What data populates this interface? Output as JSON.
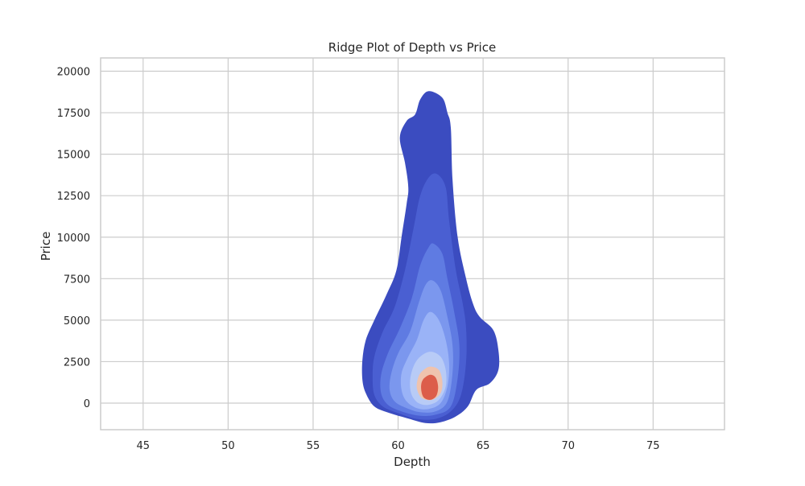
{
  "chart_data": {
    "type": "density_contour",
    "title": "Ridge Plot of Depth vs Price",
    "xlabel": "Depth",
    "ylabel": "Price",
    "xlim": [
      42.5,
      79.2
    ],
    "ylim": [
      -1600,
      20800
    ],
    "x_ticks": [
      45,
      50,
      55,
      60,
      65,
      70,
      75
    ],
    "y_ticks": [
      0,
      2500,
      5000,
      7500,
      10000,
      12500,
      15000,
      17500,
      20000
    ],
    "grid": true,
    "palette": [
      "#3b4cc0",
      "#4a5fd2",
      "#5f7be2",
      "#7b97ee",
      "#9ab3f7",
      "#b8cbf6",
      "#d3d8e6",
      "#efc3ae",
      "#dc5d4a"
    ],
    "levels": [
      {
        "level": 1,
        "color": "#3b4cc0",
        "points": [
          [
            61.8,
            18.8
          ],
          [
            62.6,
            18.4
          ],
          [
            62.9,
            17.5
          ],
          [
            63.1,
            16.6
          ],
          [
            63.2,
            13.5
          ],
          [
            63.5,
            10.0
          ],
          [
            64.0,
            7.5
          ],
          [
            64.4,
            6.0
          ],
          [
            64.8,
            5.2
          ],
          [
            65.6,
            4.4
          ],
          [
            65.9,
            3.2
          ],
          [
            65.9,
            2.0
          ],
          [
            65.4,
            1.2
          ],
          [
            64.6,
            0.8
          ],
          [
            64.1,
            -0.2
          ],
          [
            63.4,
            -0.8
          ],
          [
            62.5,
            -1.15
          ],
          [
            61.6,
            -1.2
          ],
          [
            60.5,
            -0.9
          ],
          [
            59.5,
            -0.6
          ],
          [
            58.6,
            -0.2
          ],
          [
            58.1,
            0.6
          ],
          [
            57.9,
            1.4
          ],
          [
            57.9,
            2.6
          ],
          [
            58.1,
            3.8
          ],
          [
            58.6,
            5.0
          ],
          [
            59.3,
            6.5
          ],
          [
            59.9,
            8.0
          ],
          [
            60.2,
            10.0
          ],
          [
            60.5,
            12.0
          ],
          [
            60.6,
            13.0
          ],
          [
            60.4,
            14.5
          ],
          [
            60.1,
            16.0
          ],
          [
            60.5,
            17.0
          ],
          [
            61.0,
            17.4
          ],
          [
            61.3,
            18.3
          ]
        ]
      },
      {
        "level": 2,
        "color": "#4a5fd2",
        "points": [
          [
            62.3,
            13.8
          ],
          [
            62.8,
            13.0
          ],
          [
            63.0,
            11.0
          ],
          [
            63.4,
            8.0
          ],
          [
            63.8,
            6.0
          ],
          [
            64.0,
            4.5
          ],
          [
            64.0,
            2.5
          ],
          [
            63.7,
            0.5
          ],
          [
            63.1,
            -0.5
          ],
          [
            62.2,
            -0.95
          ],
          [
            61.1,
            -0.95
          ],
          [
            60.0,
            -0.6
          ],
          [
            59.1,
            -0.2
          ],
          [
            58.6,
            0.5
          ],
          [
            58.5,
            1.6
          ],
          [
            58.6,
            2.8
          ],
          [
            59.1,
            4.3
          ],
          [
            59.8,
            5.8
          ],
          [
            60.4,
            8.0
          ],
          [
            60.9,
            10.5
          ],
          [
            61.3,
            12.5
          ],
          [
            61.8,
            13.6
          ]
        ]
      },
      {
        "level": 3,
        "color": "#5f7be2",
        "points": [
          [
            62.1,
            9.6
          ],
          [
            62.6,
            9.0
          ],
          [
            62.9,
            7.5
          ],
          [
            63.3,
            5.5
          ],
          [
            63.6,
            3.5
          ],
          [
            63.5,
            1.5
          ],
          [
            63.1,
            -0.2
          ],
          [
            62.2,
            -0.7
          ],
          [
            61.2,
            -0.75
          ],
          [
            60.2,
            -0.5
          ],
          [
            59.4,
            -0.1
          ],
          [
            59.0,
            0.6
          ],
          [
            59.0,
            1.7
          ],
          [
            59.4,
            3.0
          ],
          [
            60.1,
            4.5
          ],
          [
            60.8,
            6.3
          ],
          [
            61.3,
            8.3
          ],
          [
            61.8,
            9.4
          ]
        ]
      },
      {
        "level": 4,
        "color": "#7b97ee",
        "points": [
          [
            62.0,
            7.4
          ],
          [
            62.5,
            6.8
          ],
          [
            62.9,
            5.2
          ],
          [
            63.2,
            3.5
          ],
          [
            63.2,
            1.8
          ],
          [
            62.9,
            0.1
          ],
          [
            62.2,
            -0.5
          ],
          [
            61.3,
            -0.55
          ],
          [
            60.5,
            -0.3
          ],
          [
            59.8,
            0.1
          ],
          [
            59.5,
            0.8
          ],
          [
            59.6,
            1.8
          ],
          [
            60.0,
            3.0
          ],
          [
            60.7,
            4.3
          ],
          [
            61.2,
            6.0
          ],
          [
            61.6,
            7.1
          ]
        ]
      },
      {
        "level": 5,
        "color": "#9ab3f7",
        "points": [
          [
            61.9,
            5.5
          ],
          [
            62.4,
            5.0
          ],
          [
            62.8,
            3.8
          ],
          [
            63.0,
            2.4
          ],
          [
            62.9,
            1.0
          ],
          [
            62.5,
            0.0
          ],
          [
            61.8,
            -0.35
          ],
          [
            61.1,
            -0.3
          ],
          [
            60.5,
            0.1
          ],
          [
            60.2,
            0.8
          ],
          [
            60.2,
            1.8
          ],
          [
            60.6,
            2.8
          ],
          [
            61.1,
            3.8
          ],
          [
            61.5,
            5.0
          ]
        ]
      },
      {
        "level": 6,
        "color": "#b8cbf6",
        "points": [
          [
            61.9,
            3.1
          ],
          [
            62.5,
            2.8
          ],
          [
            62.8,
            2.0
          ],
          [
            62.8,
            1.0
          ],
          [
            62.4,
            0.2
          ],
          [
            61.8,
            -0.1
          ],
          [
            61.2,
            0.0
          ],
          [
            60.8,
            0.5
          ],
          [
            60.7,
            1.3
          ],
          [
            60.9,
            2.2
          ],
          [
            61.3,
            2.8
          ]
        ]
      },
      {
        "level": 7,
        "color": "#efc3ae",
        "points": [
          [
            61.9,
            2.2
          ],
          [
            62.4,
            2.0
          ],
          [
            62.6,
            1.3
          ],
          [
            62.5,
            0.6
          ],
          [
            62.0,
            0.2
          ],
          [
            61.4,
            0.3
          ],
          [
            61.1,
            0.9
          ],
          [
            61.2,
            1.6
          ],
          [
            61.5,
            2.0
          ]
        ]
      },
      {
        "level": 8,
        "color": "#dc5d4a",
        "points": [
          [
            61.85,
            1.7
          ],
          [
            62.2,
            1.55
          ],
          [
            62.35,
            1.0
          ],
          [
            62.25,
            0.45
          ],
          [
            61.9,
            0.2
          ],
          [
            61.5,
            0.35
          ],
          [
            61.35,
            0.9
          ],
          [
            61.45,
            1.4
          ]
        ]
      }
    ]
  }
}
